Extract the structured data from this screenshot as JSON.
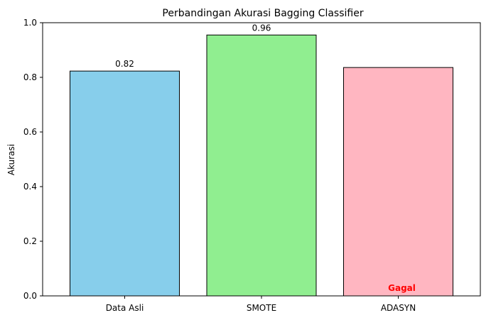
{
  "chart_data": {
    "type": "bar",
    "title": "Perbandingan Akurasi Bagging Classifier",
    "xlabel": "",
    "ylabel": "Akurasi",
    "ylim": [
      0,
      1.0
    ],
    "yticks": [
      "0.0",
      "0.2",
      "0.4",
      "0.6",
      "0.8",
      "1.0"
    ],
    "categories": [
      "Data Asli",
      "SMOTE",
      "ADASYN"
    ],
    "values": [
      0.823,
      0.955,
      0.836
    ],
    "data_labels": [
      "0.82",
      "0.96",
      ""
    ],
    "colors": [
      "#87ceeb",
      "#90ee90",
      "#ffb6c1"
    ],
    "edge_color": "#000000",
    "annotations": [
      {
        "category": "ADASYN",
        "text": "Gagal",
        "color": "#ff0000"
      }
    ],
    "grid": false,
    "legend": "none"
  }
}
